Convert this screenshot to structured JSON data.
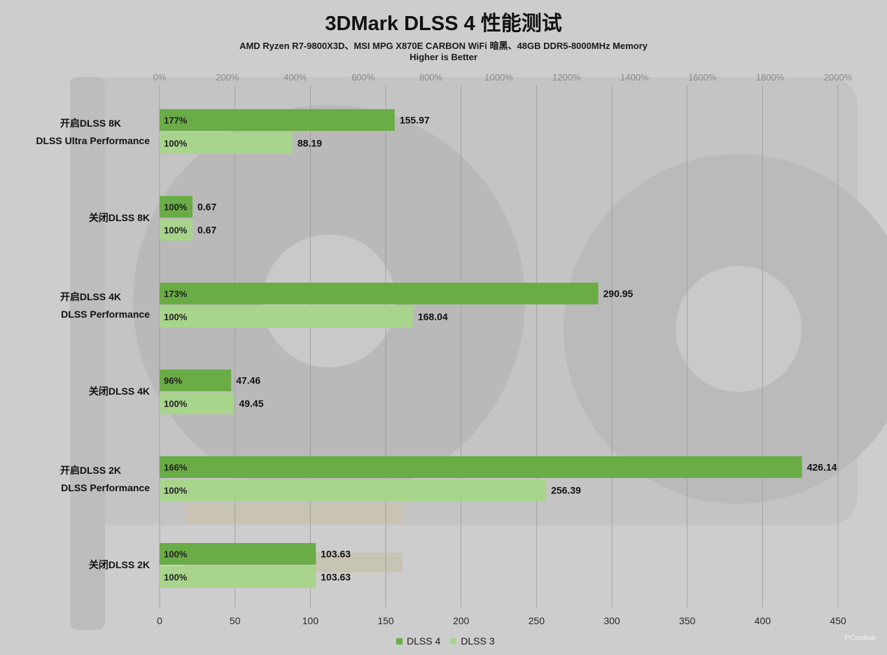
{
  "title": "3DMark DLSS 4 性能测试",
  "subtitle_line1": "AMD Ryzen R7-9800X3D、MSI MPG X870E CARBON WiFi 暗黑、48GB DDR5-8000MHz Memory",
  "subtitle_line2": "Higher is Better",
  "watermark": "PConline",
  "colors": {
    "dlss4": "#6aac45",
    "dlss3": "#a8d48c",
    "grid": "#9a9a9a"
  },
  "chart_data": {
    "type": "bar",
    "orientation": "horizontal",
    "categories": [
      [
        "开启DLSS 8K",
        "DLSS Ultra Performance"
      ],
      [
        "关闭DLSS 8K"
      ],
      [
        "开启DLSS 4K",
        "DLSS Performance"
      ],
      [
        "关闭DLSS 4K"
      ],
      [
        "开启DLSS 2K",
        "DLSS Performance"
      ],
      [
        "关闭DLSS 2K"
      ]
    ],
    "series": [
      {
        "name": "DLSS 4",
        "values": [
          155.97,
          0.67,
          290.95,
          47.46,
          426.14,
          103.63
        ],
        "value_labels": [
          "155.97",
          "0.67",
          "290.95",
          "47.46",
          "426.14",
          "103.63"
        ],
        "percent_labels": [
          "177%",
          "100%",
          "173%",
          "96%",
          "166%",
          "100%"
        ]
      },
      {
        "name": "DLSS 3",
        "values": [
          88.19,
          0.67,
          168.04,
          49.45,
          256.39,
          103.63
        ],
        "value_labels": [
          "88.19",
          "0.67",
          "168.04",
          "49.45",
          "256.39",
          "103.63"
        ],
        "percent_labels": [
          "100%",
          "100%",
          "100%",
          "100%",
          "100%",
          "100%"
        ]
      }
    ],
    "x_bottom": {
      "range": [
        0,
        450
      ],
      "ticks": [
        0,
        50,
        100,
        150,
        200,
        250,
        300,
        350,
        400,
        450
      ],
      "tick_labels": [
        "0",
        "50",
        "100",
        "150",
        "200",
        "250",
        "300",
        "350",
        "400",
        "450"
      ]
    },
    "x_top": {
      "range": [
        0,
        2000
      ],
      "ticks": [
        0,
        200,
        400,
        600,
        800,
        1000,
        1200,
        1400,
        1600,
        1800,
        2000
      ],
      "tick_labels": [
        "0%",
        "200%",
        "400%",
        "600%",
        "800%",
        "1000%",
        "1200%",
        "1400%",
        "1600%",
        "1800%",
        "2000%"
      ]
    },
    "grid": true,
    "legend_position": "bottom"
  }
}
